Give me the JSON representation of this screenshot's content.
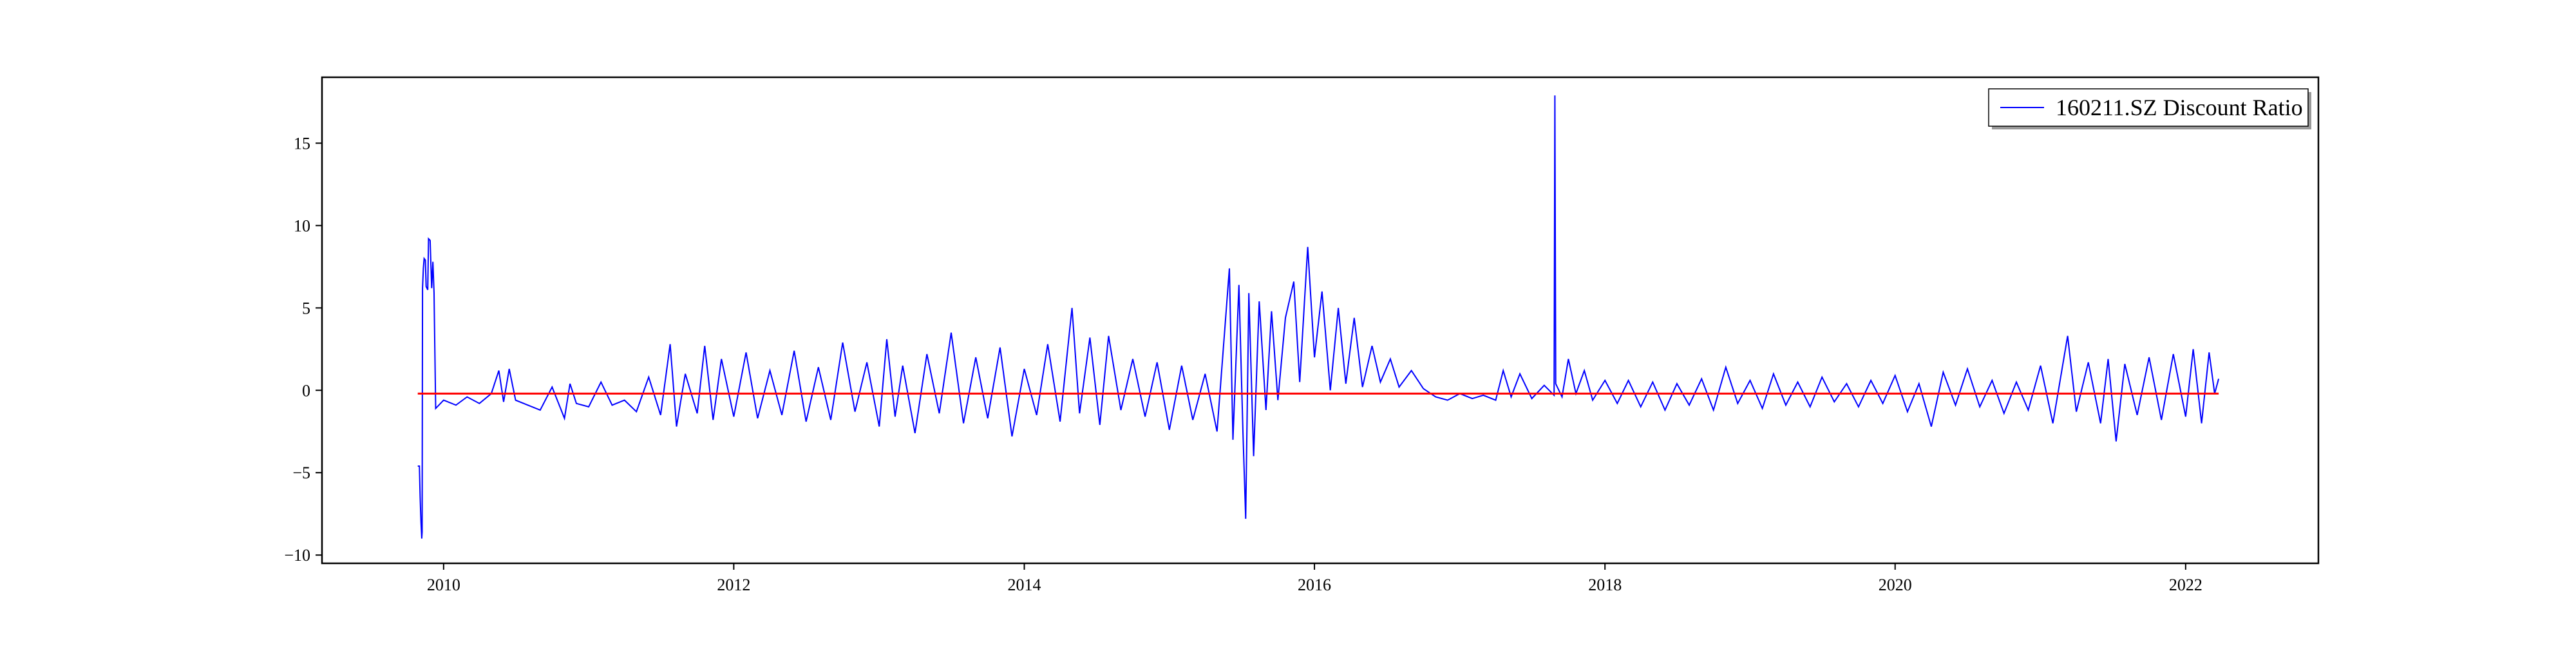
{
  "chart_data": {
    "type": "line",
    "title": "",
    "xlabel": "",
    "ylabel": "",
    "x_axis_type": "date",
    "xlim": [
      "2009-03-01",
      "2022-12-01"
    ],
    "ylim": [
      -10.5,
      19
    ],
    "x_ticks": [
      {
        "value": "2010-01-01",
        "label": "2010"
      },
      {
        "value": "2012-01-01",
        "label": "2012"
      },
      {
        "value": "2014-01-01",
        "label": "2014"
      },
      {
        "value": "2016-01-01",
        "label": "2016"
      },
      {
        "value": "2018-01-01",
        "label": "2018"
      },
      {
        "value": "2020-01-01",
        "label": "2020"
      },
      {
        "value": "2022-01-01",
        "label": "2022"
      }
    ],
    "y_ticks": [
      {
        "value": -10,
        "label": "−10"
      },
      {
        "value": -5,
        "label": "−5"
      },
      {
        "value": 0,
        "label": "0"
      },
      {
        "value": 5,
        "label": "5"
      },
      {
        "value": 10,
        "label": "10"
      },
      {
        "value": 15,
        "label": "15"
      }
    ],
    "grid": false,
    "legend_position": "top-right",
    "series": [
      {
        "name": "160211.SZ Discount Ratio",
        "color": "#0000ff",
        "points": [
          [
            "2009-10-28",
            -4.6
          ],
          [
            "2009-11-01",
            -4.6
          ],
          [
            "2009-11-03",
            -6.5
          ],
          [
            "2009-11-05",
            -8.0
          ],
          [
            "2009-11-07",
            -9.0
          ],
          [
            "2009-11-08",
            -8.6
          ],
          [
            "2009-11-09",
            6.2
          ],
          [
            "2009-11-11",
            7.4
          ],
          [
            "2009-11-13",
            8.0
          ],
          [
            "2009-11-16",
            7.9
          ],
          [
            "2009-11-18",
            6.3
          ],
          [
            "2009-11-22",
            6.1
          ],
          [
            "2009-11-24",
            9.2
          ],
          [
            "2009-11-28",
            9.1
          ],
          [
            "2009-12-02",
            6.2
          ],
          [
            "2009-12-05",
            7.8
          ],
          [
            "2009-12-08",
            5.9
          ],
          [
            "2009-12-12",
            -1.1
          ],
          [
            "2010-01-01",
            -0.6
          ],
          [
            "2010-02-01",
            -0.9
          ],
          [
            "2010-03-01",
            -0.4
          ],
          [
            "2010-04-01",
            -0.8
          ],
          [
            "2010-05-01",
            -0.2
          ],
          [
            "2010-05-20",
            1.2
          ],
          [
            "2010-06-01",
            -0.7
          ],
          [
            "2010-06-15",
            1.3
          ],
          [
            "2010-07-01",
            -0.6
          ],
          [
            "2010-08-01",
            -0.9
          ],
          [
            "2010-09-01",
            -1.2
          ],
          [
            "2010-10-01",
            0.2
          ],
          [
            "2010-11-01",
            -1.7
          ],
          [
            "2010-11-15",
            0.4
          ],
          [
            "2010-12-01",
            -0.8
          ],
          [
            "2011-01-01",
            -1.0
          ],
          [
            "2011-02-01",
            0.5
          ],
          [
            "2011-03-01",
            -0.9
          ],
          [
            "2011-04-01",
            -0.6
          ],
          [
            "2011-05-01",
            -1.3
          ],
          [
            "2011-06-01",
            0.8
          ],
          [
            "2011-07-01",
            -1.5
          ],
          [
            "2011-07-25",
            2.8
          ],
          [
            "2011-08-10",
            -2.2
          ],
          [
            "2011-09-01",
            1.0
          ],
          [
            "2011-10-01",
            -1.4
          ],
          [
            "2011-10-20",
            2.7
          ],
          [
            "2011-11-10",
            -1.8
          ],
          [
            "2011-12-01",
            1.9
          ],
          [
            "2012-01-01",
            -1.6
          ],
          [
            "2012-02-01",
            2.3
          ],
          [
            "2012-03-01",
            -1.7
          ],
          [
            "2012-04-01",
            1.2
          ],
          [
            "2012-05-01",
            -1.5
          ],
          [
            "2012-06-01",
            2.4
          ],
          [
            "2012-07-01",
            -1.9
          ],
          [
            "2012-08-01",
            1.4
          ],
          [
            "2012-09-01",
            -1.8
          ],
          [
            "2012-10-01",
            2.9
          ],
          [
            "2012-11-01",
            -1.3
          ],
          [
            "2012-12-01",
            1.7
          ],
          [
            "2013-01-01",
            -2.2
          ],
          [
            "2013-01-20",
            3.1
          ],
          [
            "2013-02-10",
            -1.6
          ],
          [
            "2013-03-01",
            1.5
          ],
          [
            "2013-04-01",
            -2.6
          ],
          [
            "2013-05-01",
            2.2
          ],
          [
            "2013-06-01",
            -1.4
          ],
          [
            "2013-07-01",
            3.5
          ],
          [
            "2013-08-01",
            -2.0
          ],
          [
            "2013-09-01",
            2.0
          ],
          [
            "2013-10-01",
            -1.7
          ],
          [
            "2013-11-01",
            2.6
          ],
          [
            "2013-12-01",
            -2.8
          ],
          [
            "2014-01-01",
            1.3
          ],
          [
            "2014-02-01",
            -1.5
          ],
          [
            "2014-03-01",
            2.8
          ],
          [
            "2014-04-01",
            -1.9
          ],
          [
            "2014-05-01",
            5.0
          ],
          [
            "2014-05-20",
            -1.4
          ],
          [
            "2014-06-15",
            3.2
          ],
          [
            "2014-07-10",
            -2.1
          ],
          [
            "2014-08-01",
            3.3
          ],
          [
            "2014-09-01",
            -1.2
          ],
          [
            "2014-10-01",
            1.9
          ],
          [
            "2014-11-01",
            -1.6
          ],
          [
            "2014-12-01",
            1.7
          ],
          [
            "2015-01-01",
            -2.4
          ],
          [
            "2015-02-01",
            1.5
          ],
          [
            "2015-03-01",
            -1.8
          ],
          [
            "2015-04-01",
            1.0
          ],
          [
            "2015-05-01",
            -2.5
          ],
          [
            "2015-06-01",
            7.4
          ],
          [
            "2015-06-10",
            -3.0
          ],
          [
            "2015-06-25",
            6.4
          ],
          [
            "2015-07-05",
            -2.5
          ],
          [
            "2015-07-12",
            -7.8
          ],
          [
            "2015-07-20",
            5.9
          ],
          [
            "2015-08-01",
            -4.0
          ],
          [
            "2015-08-15",
            5.4
          ],
          [
            "2015-09-01",
            -1.2
          ],
          [
            "2015-09-15",
            4.8
          ],
          [
            "2015-10-01",
            -0.6
          ],
          [
            "2015-10-20",
            4.4
          ],
          [
            "2015-11-10",
            6.6
          ],
          [
            "2015-11-25",
            0.5
          ],
          [
            "2015-12-15",
            8.7
          ],
          [
            "2016-01-01",
            2.0
          ],
          [
            "2016-01-20",
            6.0
          ],
          [
            "2016-02-10",
            0.0
          ],
          [
            "2016-03-01",
            5.0
          ],
          [
            "2016-03-20",
            0.4
          ],
          [
            "2016-04-10",
            4.4
          ],
          [
            "2016-05-01",
            0.2
          ],
          [
            "2016-05-25",
            2.7
          ],
          [
            "2016-06-15",
            0.5
          ],
          [
            "2016-07-10",
            1.9
          ],
          [
            "2016-08-01",
            0.2
          ],
          [
            "2016-09-01",
            1.2
          ],
          [
            "2016-10-01",
            0.1
          ],
          [
            "2016-11-01",
            -0.4
          ],
          [
            "2016-12-01",
            -0.6
          ],
          [
            "2017-01-01",
            -0.2
          ],
          [
            "2017-02-01",
            -0.5
          ],
          [
            "2017-03-01",
            -0.3
          ],
          [
            "2017-04-01",
            -0.6
          ],
          [
            "2017-04-20",
            1.2
          ],
          [
            "2017-05-10",
            -0.4
          ],
          [
            "2017-06-01",
            1.0
          ],
          [
            "2017-07-01",
            -0.5
          ],
          [
            "2017-08-01",
            0.3
          ],
          [
            "2017-08-26",
            -0.3
          ],
          [
            "2017-08-28",
            17.9
          ],
          [
            "2017-08-30",
            0.4
          ],
          [
            "2017-09-15",
            -0.4
          ],
          [
            "2017-10-01",
            1.9
          ],
          [
            "2017-10-20",
            -0.2
          ],
          [
            "2017-11-10",
            1.2
          ],
          [
            "2017-12-01",
            -0.6
          ],
          [
            "2018-01-01",
            0.6
          ],
          [
            "2018-02-01",
            -0.8
          ],
          [
            "2018-03-01",
            0.6
          ],
          [
            "2018-04-01",
            -1.0
          ],
          [
            "2018-05-01",
            0.5
          ],
          [
            "2018-06-01",
            -1.2
          ],
          [
            "2018-07-01",
            0.4
          ],
          [
            "2018-08-01",
            -0.9
          ],
          [
            "2018-09-01",
            0.7
          ],
          [
            "2018-10-01",
            -1.2
          ],
          [
            "2018-11-01",
            1.4
          ],
          [
            "2018-12-01",
            -0.8
          ],
          [
            "2019-01-01",
            0.6
          ],
          [
            "2019-02-01",
            -1.1
          ],
          [
            "2019-03-01",
            1.0
          ],
          [
            "2019-04-01",
            -0.9
          ],
          [
            "2019-05-01",
            0.5
          ],
          [
            "2019-06-01",
            -1.0
          ],
          [
            "2019-07-01",
            0.8
          ],
          [
            "2019-08-01",
            -0.7
          ],
          [
            "2019-09-01",
            0.4
          ],
          [
            "2019-10-01",
            -1.0
          ],
          [
            "2019-11-01",
            0.6
          ],
          [
            "2019-12-01",
            -0.8
          ],
          [
            "2020-01-01",
            0.9
          ],
          [
            "2020-02-01",
            -1.3
          ],
          [
            "2020-03-01",
            0.4
          ],
          [
            "2020-04-01",
            -2.2
          ],
          [
            "2020-05-01",
            1.1
          ],
          [
            "2020-06-01",
            -0.9
          ],
          [
            "2020-07-01",
            1.3
          ],
          [
            "2020-08-01",
            -1.0
          ],
          [
            "2020-09-01",
            0.6
          ],
          [
            "2020-10-01",
            -1.4
          ],
          [
            "2020-11-01",
            0.5
          ],
          [
            "2020-12-01",
            -1.2
          ],
          [
            "2021-01-01",
            1.5
          ],
          [
            "2021-02-01",
            -2.0
          ],
          [
            "2021-03-10",
            3.3
          ],
          [
            "2021-04-01",
            -1.3
          ],
          [
            "2021-05-01",
            1.7
          ],
          [
            "2021-06-01",
            -2.0
          ],
          [
            "2021-06-20",
            1.9
          ],
          [
            "2021-07-10",
            -3.1
          ],
          [
            "2021-08-01",
            1.6
          ],
          [
            "2021-09-01",
            -1.5
          ],
          [
            "2021-10-01",
            2.0
          ],
          [
            "2021-11-01",
            -1.8
          ],
          [
            "2021-12-01",
            2.2
          ],
          [
            "2022-01-01",
            -1.6
          ],
          [
            "2022-01-20",
            2.5
          ],
          [
            "2022-02-10",
            -2.0
          ],
          [
            "2022-03-01",
            2.3
          ],
          [
            "2022-03-15",
            -0.2
          ],
          [
            "2022-03-25",
            0.7
          ]
        ]
      },
      {
        "name": "",
        "color": "#ff0000",
        "points": [
          [
            "2009-10-28",
            -0.2
          ],
          [
            "2022-03-25",
            -0.2
          ]
        ]
      }
    ]
  }
}
